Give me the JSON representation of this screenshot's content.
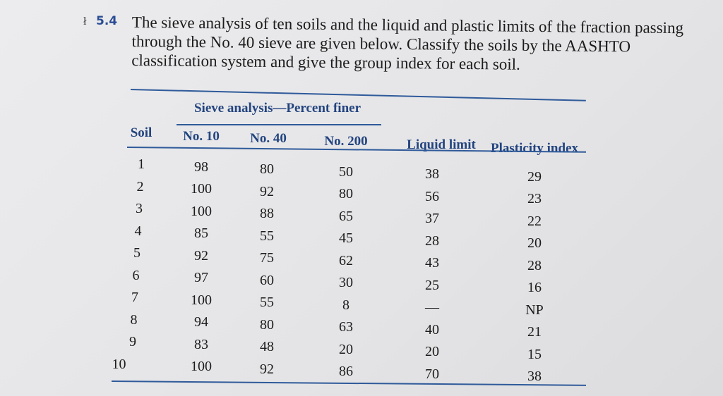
{
  "problem": {
    "number": "5.4",
    "text": "The sieve analysis of ten soils and the liquid and plastic limits of the fraction passing through the No. 40 sieve are given below. Classify the soils by the AASHTO classification system and give the group index for each soil."
  },
  "table": {
    "group_header": "Sieve analysis—Percent finer",
    "columns": [
      "Soil",
      "No. 10",
      "No. 40",
      "No. 200",
      "Liquid limit",
      "Plasticity index"
    ],
    "rows": [
      [
        "1",
        "98",
        "80",
        "50",
        "38",
        "29"
      ],
      [
        "2",
        "100",
        "92",
        "80",
        "56",
        "23"
      ],
      [
        "3",
        "100",
        "88",
        "65",
        "37",
        "22"
      ],
      [
        "4",
        "85",
        "55",
        "45",
        "28",
        "20"
      ],
      [
        "5",
        "92",
        "75",
        "62",
        "43",
        "28"
      ],
      [
        "6",
        "97",
        "60",
        "30",
        "25",
        "16"
      ],
      [
        "7",
        "100",
        "55",
        "8",
        "—",
        "NP"
      ],
      [
        "8",
        "94",
        "80",
        "63",
        "40",
        "21"
      ],
      [
        "9",
        "83",
        "48",
        "20",
        "20",
        "15"
      ],
      [
        "10",
        "100",
        "92",
        "86",
        "70",
        "38"
      ]
    ]
  },
  "colors": {
    "header_blue": "#23447f",
    "rule_blue": "#2f5a9a"
  }
}
